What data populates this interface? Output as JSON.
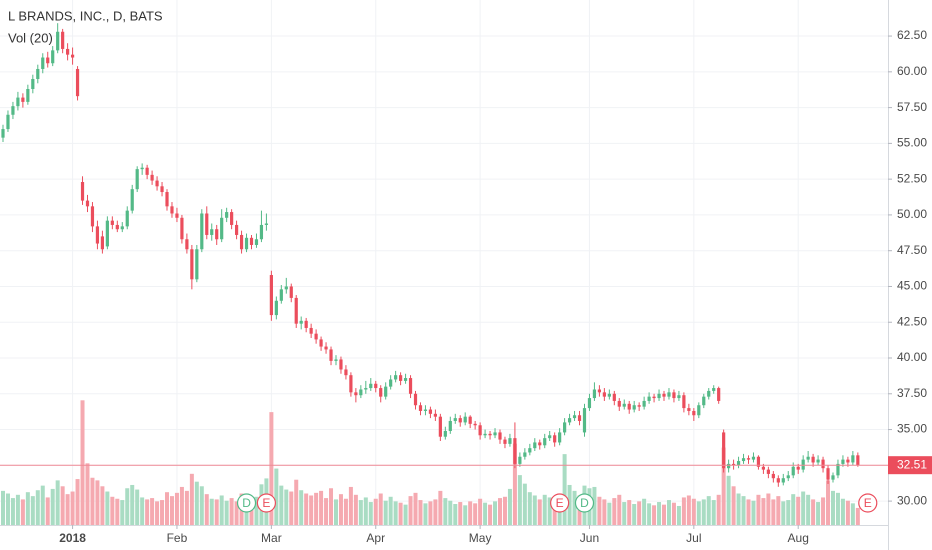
{
  "chart_data": {
    "type": "candlestick",
    "title": "L BRANDS, INC., D, BATS",
    "subtitle": "Vol (20)",
    "up_color": "#53b987",
    "down_color": "#eb4d5c",
    "up_volume_color": "#a9dcc3",
    "down_volume_color": "#f5a9b0",
    "grid": true,
    "ylim": [
      28.33,
      65.02
    ],
    "yticks": [
      {
        "value": 30,
        "label": "30.00"
      },
      {
        "value": 32.5,
        "label": "32.50"
      },
      {
        "value": 35,
        "label": "35.00"
      },
      {
        "value": 37.5,
        "label": "37.50"
      },
      {
        "value": 40,
        "label": "40.00"
      },
      {
        "value": 42.5,
        "label": "42.50"
      },
      {
        "value": 45,
        "label": "45.00"
      },
      {
        "value": 47.5,
        "label": "47.50"
      },
      {
        "value": 50,
        "label": "50.00"
      },
      {
        "value": 52.5,
        "label": "52.50"
      },
      {
        "value": 55,
        "label": "55.00"
      },
      {
        "value": 57.5,
        "label": "57.50"
      },
      {
        "value": 60,
        "label": "60.00"
      },
      {
        "value": 62.5,
        "label": "62.50"
      }
    ],
    "xticks": [
      {
        "value": 14,
        "label": "2018"
      },
      {
        "value": 35,
        "label": "Feb"
      },
      {
        "value": 54,
        "label": "Mar"
      },
      {
        "value": 75,
        "label": "Apr"
      },
      {
        "value": 96,
        "label": "May"
      },
      {
        "value": 118,
        "label": "Jun"
      },
      {
        "value": 139,
        "label": "Jul"
      },
      {
        "value": 160,
        "label": "Aug"
      }
    ],
    "volume_lim": [
      0,
      80
    ],
    "events": [
      {
        "label": "D",
        "index": 49,
        "color": "#53b987"
      },
      {
        "label": "E",
        "index": 53,
        "color": "#eb4d5c"
      },
      {
        "label": "E",
        "index": 112,
        "color": "#eb4d5c"
      },
      {
        "label": "D",
        "index": 117,
        "color": "#53b987"
      },
      {
        "label": "E",
        "index": 174,
        "color": "#eb4d5c"
      }
    ],
    "ohlc": [
      [
        55.4,
        56.3,
        55.1,
        56.0
      ],
      [
        56.0,
        57.3,
        55.8,
        57.0
      ],
      [
        57.0,
        57.9,
        56.7,
        57.6
      ],
      [
        57.6,
        58.6,
        57.3,
        58.2
      ],
      [
        58.2,
        58.5,
        57.5,
        57.9
      ],
      [
        57.9,
        59.1,
        57.7,
        58.8
      ],
      [
        58.8,
        59.8,
        58.5,
        59.5
      ],
      [
        59.5,
        60.5,
        59.2,
        60.2
      ],
      [
        60.2,
        61.3,
        59.9,
        61.0
      ],
      [
        61.0,
        61.4,
        60.3,
        60.6
      ],
      [
        60.6,
        61.8,
        60.4,
        61.5
      ],
      [
        61.5,
        63.4,
        61.3,
        62.8
      ],
      [
        62.8,
        63.0,
        61.3,
        61.6
      ],
      [
        61.6,
        62.0,
        60.8,
        61.2
      ],
      [
        61.2,
        61.7,
        60.5,
        61.0
      ],
      [
        60.2,
        60.4,
        58.0,
        58.3
      ],
      [
        52.3,
        52.7,
        50.7,
        51.0
      ],
      [
        51.0,
        51.4,
        50.2,
        50.6
      ],
      [
        50.6,
        50.9,
        48.8,
        49.2
      ],
      [
        49.2,
        49.6,
        47.6,
        48.0
      ],
      [
        48.5,
        48.9,
        47.3,
        47.6
      ],
      [
        47.8,
        49.9,
        47.6,
        49.6
      ],
      [
        49.6,
        49.9,
        49.0,
        49.3
      ],
      [
        49.3,
        49.6,
        48.8,
        49.0
      ],
      [
        49.0,
        49.5,
        48.8,
        49.2
      ],
      [
        49.2,
        50.6,
        49.0,
        50.3
      ],
      [
        50.3,
        52.1,
        50.1,
        51.8
      ],
      [
        51.8,
        53.4,
        51.6,
        53.2
      ],
      [
        53.2,
        53.6,
        52.8,
        53.3
      ],
      [
        53.3,
        53.5,
        52.5,
        52.8
      ],
      [
        52.8,
        53.1,
        52.1,
        52.4
      ],
      [
        52.4,
        52.7,
        51.7,
        52.0
      ],
      [
        52.0,
        52.3,
        51.3,
        51.6
      ],
      [
        51.6,
        51.8,
        50.3,
        50.6
      ],
      [
        50.6,
        50.9,
        49.8,
        50.1
      ],
      [
        50.1,
        50.5,
        49.5,
        49.8
      ],
      [
        49.8,
        50.0,
        48.0,
        48.3
      ],
      [
        48.3,
        48.7,
        47.3,
        47.6
      ],
      [
        47.6,
        47.9,
        44.8,
        45.5
      ],
      [
        45.5,
        47.9,
        45.3,
        47.6
      ],
      [
        47.6,
        50.4,
        47.4,
        50.1
      ],
      [
        50.1,
        50.6,
        48.3,
        48.6
      ],
      [
        48.6,
        49.4,
        48.2,
        49.0
      ],
      [
        49.0,
        49.3,
        47.9,
        48.3
      ],
      [
        48.3,
        50.4,
        48.1,
        49.8
      ],
      [
        49.8,
        50.5,
        49.5,
        50.2
      ],
      [
        50.2,
        50.4,
        49.0,
        49.3
      ],
      [
        49.3,
        49.6,
        48.3,
        48.6
      ],
      [
        48.6,
        48.9,
        47.3,
        47.6
      ],
      [
        47.6,
        48.7,
        47.4,
        48.4
      ],
      [
        48.4,
        48.6,
        47.6,
        47.9
      ],
      [
        47.9,
        48.7,
        47.7,
        48.3
      ],
      [
        48.3,
        50.3,
        48.1,
        49.3
      ],
      [
        49.3,
        50.1,
        48.9,
        49.4
      ],
      [
        45.8,
        46.1,
        42.6,
        43.0
      ],
      [
        43.0,
        44.3,
        42.7,
        44.0
      ],
      [
        44.0,
        45.1,
        43.8,
        44.8
      ],
      [
        44.8,
        45.6,
        44.5,
        45.0
      ],
      [
        45.0,
        45.2,
        43.9,
        44.2
      ],
      [
        44.2,
        44.4,
        42.1,
        42.4
      ],
      [
        42.4,
        42.9,
        42.0,
        42.6
      ],
      [
        42.6,
        42.8,
        41.8,
        42.1
      ],
      [
        42.1,
        42.4,
        41.4,
        41.7
      ],
      [
        41.7,
        42.0,
        41.0,
        41.3
      ],
      [
        41.3,
        41.5,
        40.5,
        40.8
      ],
      [
        40.8,
        41.1,
        40.3,
        40.6
      ],
      [
        40.6,
        40.8,
        39.5,
        39.8
      ],
      [
        39.8,
        40.2,
        39.5,
        39.9
      ],
      [
        39.9,
        40.1,
        38.9,
        39.2
      ],
      [
        39.2,
        39.5,
        38.5,
        38.8
      ],
      [
        38.8,
        39.0,
        37.3,
        37.6
      ],
      [
        37.6,
        37.9,
        36.9,
        37.4
      ],
      [
        37.4,
        38.1,
        37.2,
        37.8
      ],
      [
        37.8,
        38.4,
        37.5,
        37.9
      ],
      [
        37.9,
        38.6,
        37.7,
        38.2
      ],
      [
        38.2,
        38.4,
        37.6,
        37.9
      ],
      [
        37.9,
        38.1,
        36.9,
        37.3
      ],
      [
        37.3,
        38.3,
        37.1,
        38.0
      ],
      [
        38.0,
        38.8,
        37.8,
        38.5
      ],
      [
        38.5,
        39.1,
        38.3,
        38.8
      ],
      [
        38.8,
        39.0,
        38.1,
        38.4
      ],
      [
        38.4,
        38.9,
        38.2,
        38.6
      ],
      [
        38.6,
        38.8,
        37.2,
        37.5
      ],
      [
        37.5,
        37.7,
        36.4,
        36.7
      ],
      [
        36.7,
        36.9,
        36.0,
        36.3
      ],
      [
        36.3,
        36.7,
        36.0,
        36.4
      ],
      [
        36.4,
        36.6,
        35.8,
        36.1
      ],
      [
        36.1,
        36.4,
        35.6,
        35.9
      ],
      [
        35.9,
        36.1,
        34.2,
        34.5
      ],
      [
        34.5,
        35.2,
        34.3,
        34.9
      ],
      [
        34.9,
        35.9,
        34.7,
        35.6
      ],
      [
        35.6,
        36.1,
        35.4,
        35.8
      ],
      [
        35.8,
        36.0,
        35.2,
        35.5
      ],
      [
        35.5,
        36.2,
        35.3,
        35.9
      ],
      [
        35.9,
        36.0,
        35.1,
        35.4
      ],
      [
        35.4,
        35.6,
        35.0,
        35.3
      ],
      [
        35.3,
        35.5,
        34.3,
        34.6
      ],
      [
        34.6,
        35.0,
        34.4,
        34.7
      ],
      [
        34.7,
        34.9,
        34.3,
        34.6
      ],
      [
        34.6,
        35.1,
        34.4,
        34.8
      ],
      [
        34.8,
        35.0,
        34.0,
        34.3
      ],
      [
        34.3,
        34.5,
        33.7,
        34.0
      ],
      [
        34.0,
        34.7,
        33.8,
        34.4
      ],
      [
        34.4,
        35.5,
        32.3,
        32.6
      ],
      [
        32.6,
        33.4,
        32.4,
        33.1
      ],
      [
        33.1,
        33.7,
        32.9,
        33.4
      ],
      [
        33.4,
        34.0,
        33.2,
        33.7
      ],
      [
        33.7,
        34.4,
        33.5,
        34.1
      ],
      [
        34.1,
        34.3,
        33.6,
        33.9
      ],
      [
        33.9,
        34.7,
        33.7,
        34.4
      ],
      [
        34.4,
        34.9,
        34.2,
        34.6
      ],
      [
        34.6,
        34.8,
        33.8,
        34.1
      ],
      [
        34.1,
        35.1,
        33.9,
        34.8
      ],
      [
        34.8,
        35.8,
        34.6,
        35.5
      ],
      [
        35.5,
        36.1,
        35.3,
        35.8
      ],
      [
        35.8,
        36.3,
        35.6,
        36.0
      ],
      [
        36.0,
        36.3,
        35.3,
        35.6
      ],
      [
        34.8,
        36.8,
        34.5,
        36.5
      ],
      [
        36.5,
        37.5,
        36.3,
        37.2
      ],
      [
        37.2,
        38.3,
        37.0,
        37.8
      ],
      [
        37.8,
        38.1,
        37.3,
        37.6
      ],
      [
        37.6,
        37.9,
        37.0,
        37.3
      ],
      [
        37.3,
        37.8,
        37.1,
        37.5
      ],
      [
        37.5,
        37.7,
        36.7,
        37.0
      ],
      [
        37.0,
        37.2,
        36.3,
        36.6
      ],
      [
        36.6,
        37.1,
        36.4,
        36.8
      ],
      [
        36.8,
        37.0,
        36.1,
        36.4
      ],
      [
        36.4,
        37.0,
        36.2,
        36.7
      ],
      [
        36.7,
        36.9,
        36.3,
        36.6
      ],
      [
        36.6,
        37.3,
        36.4,
        37.0
      ],
      [
        37.0,
        37.6,
        36.8,
        37.3
      ],
      [
        37.3,
        37.5,
        36.9,
        37.2
      ],
      [
        37.2,
        37.8,
        37.0,
        37.5
      ],
      [
        37.5,
        37.7,
        37.0,
        37.3
      ],
      [
        37.3,
        37.9,
        37.1,
        37.6
      ],
      [
        37.6,
        37.8,
        36.9,
        37.2
      ],
      [
        37.2,
        37.7,
        37.0,
        37.4
      ],
      [
        37.4,
        37.6,
        36.2,
        36.5
      ],
      [
        36.5,
        36.8,
        36.0,
        36.3
      ],
      [
        36.3,
        36.5,
        35.6,
        36.0
      ],
      [
        36.0,
        36.9,
        35.8,
        36.7
      ],
      [
        36.7,
        37.5,
        36.5,
        37.3
      ],
      [
        37.3,
        37.9,
        37.1,
        37.7
      ],
      [
        37.7,
        38.1,
        37.5,
        37.9
      ],
      [
        37.9,
        38.0,
        36.8,
        37.0
      ],
      [
        34.8,
        35.0,
        32.0,
        32.3
      ],
      [
        32.3,
        32.9,
        32.0,
        32.6
      ],
      [
        32.6,
        32.9,
        32.2,
        32.5
      ],
      [
        32.5,
        33.1,
        32.3,
        32.8
      ],
      [
        32.8,
        33.3,
        32.6,
        33.0
      ],
      [
        33.0,
        33.2,
        32.6,
        32.9
      ],
      [
        32.9,
        33.4,
        32.7,
        33.1
      ],
      [
        33.1,
        33.2,
        32.2,
        32.4
      ],
      [
        32.4,
        32.6,
        31.9,
        32.2
      ],
      [
        32.2,
        32.4,
        31.6,
        31.9
      ],
      [
        31.9,
        32.1,
        31.3,
        31.6
      ],
      [
        31.6,
        31.8,
        31.0,
        31.3
      ],
      [
        31.3,
        31.9,
        31.1,
        31.6
      ],
      [
        31.6,
        32.1,
        31.4,
        31.8
      ],
      [
        31.8,
        32.7,
        31.6,
        32.4
      ],
      [
        32.4,
        32.6,
        31.9,
        32.2
      ],
      [
        32.2,
        33.2,
        32.0,
        32.9
      ],
      [
        32.9,
        33.5,
        32.7,
        33.1
      ],
      [
        33.1,
        33.3,
        32.4,
        32.7
      ],
      [
        32.7,
        33.2,
        32.5,
        32.9
      ],
      [
        32.9,
        33.1,
        32.0,
        32.3
      ],
      [
        32.3,
        32.5,
        31.2,
        31.5
      ],
      [
        31.5,
        32.0,
        31.3,
        31.8
      ],
      [
        31.8,
        32.9,
        31.6,
        32.6
      ],
      [
        32.6,
        33.2,
        32.4,
        32.9
      ],
      [
        32.9,
        33.1,
        32.4,
        32.7
      ],
      [
        32.7,
        33.5,
        32.5,
        33.2
      ],
      [
        33.2,
        33.4,
        32.4,
        32.51
      ]
    ],
    "volume": [
      5.2,
      4.8,
      4.1,
      4.6,
      3.9,
      5.0,
      4.4,
      5.3,
      6.0,
      4.2,
      5.5,
      6.8,
      5.9,
      4.7,
      5.1,
      7.0,
      19.0,
      9.4,
      7.2,
      6.8,
      5.9,
      5.1,
      4.3,
      4.0,
      3.8,
      5.6,
      6.1,
      5.4,
      4.2,
      3.9,
      4.1,
      3.6,
      3.8,
      5.0,
      4.4,
      4.9,
      5.8,
      5.2,
      7.8,
      6.6,
      5.9,
      4.7,
      4.0,
      3.9,
      4.5,
      3.7,
      4.1,
      3.6,
      4.8,
      3.9,
      3.5,
      4.3,
      6.2,
      7.1,
      17.2,
      8.6,
      6.0,
      5.4,
      5.1,
      6.9,
      5.3,
      4.8,
      4.5,
      4.9,
      5.2,
      4.1,
      5.6,
      3.9,
      4.7,
      4.0,
      5.8,
      4.6,
      3.8,
      4.2,
      3.5,
      4.0,
      4.8,
      3.7,
      4.3,
      3.6,
      3.4,
      3.1,
      4.4,
      4.9,
      3.8,
      3.3,
      3.6,
      3.9,
      5.2,
      4.1,
      3.7,
      3.2,
      3.5,
      3.0,
      3.6,
      3.3,
      4.0,
      3.4,
      3.1,
      3.6,
      4.1,
      4.3,
      5.5,
      12.4,
      7.6,
      6.3,
      5.0,
      4.5,
      3.9,
      4.6,
      4.2,
      3.8,
      4.4,
      10.8,
      6.1,
      5.2,
      4.5,
      6.0,
      5.6,
      5.8,
      4.3,
      3.9,
      3.4,
      4.1,
      4.6,
      3.5,
      3.8,
      3.2,
      3.6,
      4.0,
      3.3,
      3.0,
      3.5,
      3.1,
      3.8,
      3.4,
      2.9,
      4.2,
      4.5,
      4.0,
      3.6,
      3.9,
      4.4,
      3.8,
      4.6,
      11.8,
      7.5,
      5.9,
      4.8,
      4.4,
      3.9,
      3.7,
      4.6,
      4.1,
      4.8,
      3.9,
      4.4,
      3.6,
      3.8,
      4.7,
      4.3,
      5.1,
      4.6,
      3.9,
      3.5,
      4.2,
      6.8,
      5.2,
      4.9,
      4.0,
      3.7,
      3.3,
      2.6
    ]
  }
}
